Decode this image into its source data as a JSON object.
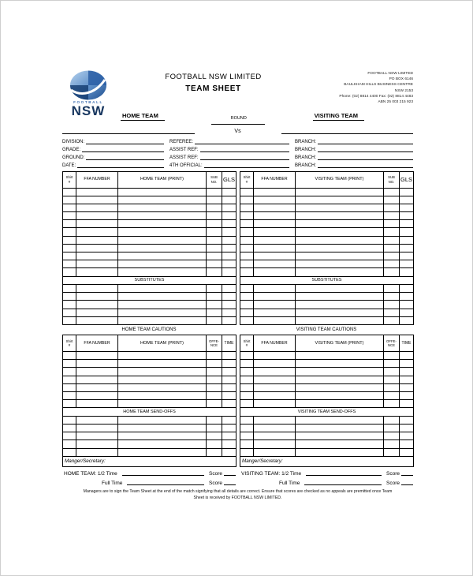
{
  "colors": {
    "logo_light_blue": "#a9c9ea",
    "logo_mid_blue": "#3a6cb0",
    "logo_dark_blue": "#17365f",
    "ink": "#000000"
  },
  "header": {
    "logo": {
      "top_text": "FOOTBALL",
      "bottom_text": "NSW"
    },
    "title": "FOOTBALL NSW LIMITED",
    "subtitle": "TEAM SHEET",
    "address_lines": [
      "FOOTBALL NSW LIMITED",
      "PO BOX 6146",
      "BAULKHAM HILLS BUSINESS CENTRE",
      "NSW 2153",
      "Phone: (02) 8814 4400 Fax: (02) 8814 4483",
      "ABN 25 003 215 923"
    ]
  },
  "match_header": {
    "home_label": "HOME TEAM",
    "round_label": "ROUND",
    "vs_label": "Vs",
    "visiting_label": "VISITING TEAM"
  },
  "info_rows": [
    {
      "left": "DIVISION:",
      "middle": "REFEREE:",
      "right": "BRANCH:"
    },
    {
      "left": "GRADE:",
      "middle": "ASSIST REF:",
      "right": "BRANCH:"
    },
    {
      "left": "GROUND:",
      "middle": "ASSIST REF:",
      "right": "BRANCH:"
    },
    {
      "left": "DATE:",
      "middle": "4TH OFFICIAL:",
      "right": "BRANCH:"
    }
  ],
  "roster": {
    "home": {
      "headers": [
        "Shirt\n#",
        "FFA NUMBER",
        "HOME TEAM (PRINT)",
        "SUB\nNO.",
        "GLS"
      ],
      "player_row_count": 11,
      "substitutes_label": "SUBSTITUTES",
      "substitute_row_count": 5,
      "cautions_title": "HOME TEAM CAUTIONS",
      "cautions_headers": [
        "Shirt\n#",
        "FFA NUMBER",
        "HOME TEAM (PRINT)",
        "OFFE-\nNCE",
        "TIME"
      ],
      "caution_row_count": 7,
      "sendoffs_label": "HOME TEAM SEND-OFFS",
      "sendoff_row_count": 5,
      "manager_label": "Manger/Secretary:",
      "halftime_label": "HOME TEAM: 1/2 Time",
      "fulltime_label": "Full Time",
      "score_label": "Score"
    },
    "visiting": {
      "headers": [
        "Shirt\n#",
        "FFA NUMBER",
        "VISITING TEAM (PRINT)",
        "SUB\nNO.",
        "GLS"
      ],
      "player_row_count": 11,
      "substitutes_label": "SUBSTITUTES",
      "substitute_row_count": 5,
      "cautions_title": "VISITING TEAM CAUTIONS",
      "cautions_headers": [
        "Shirt\n#",
        "FFA NUMBER",
        "VISITING TEAM (PRINT)",
        "OFFE-\nNCE",
        "TIME"
      ],
      "caution_row_count": 7,
      "sendoffs_label": "VISITING TEAM SEND-OFFS",
      "sendoff_row_count": 5,
      "manager_label": "Manger/Secretary:",
      "halftime_label": "VISITING TEAM: 1/2 Time",
      "fulltime_label": "Full Time",
      "score_label": "Score"
    }
  },
  "footer": {
    "line1": "Managers are to sign the Team Sheet at the end of the match signifying that all details are correct. Ensure that scores are checked as no appeals are premitted once Team",
    "line2": "Sheet is received by FOOTBALL NSW LIMITED."
  }
}
